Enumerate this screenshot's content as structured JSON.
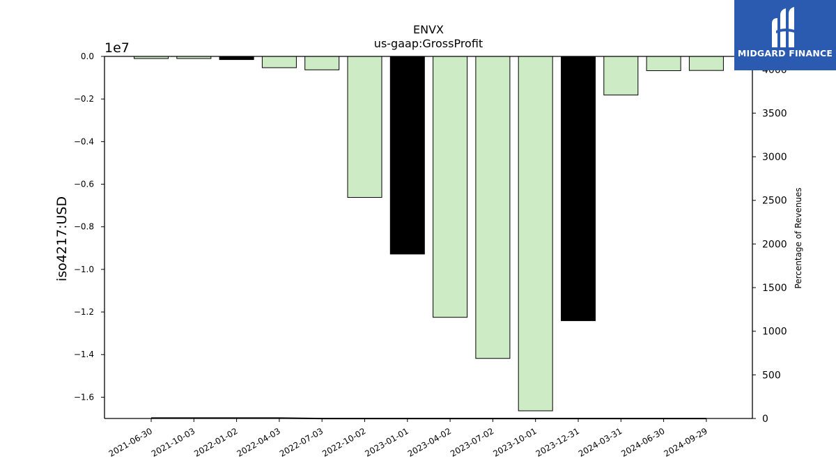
{
  "chart_data": {
    "type": "bar",
    "title": "ENVX",
    "subtitle": "us-gaap:GrossProfit",
    "ylabel": "iso4217:USD",
    "y2label": "Percentage of Revenues",
    "y_offset_label": "1e7",
    "categories": [
      "2021-06-30",
      "2021-10-03",
      "2022-01-02",
      "2022-04-03",
      "2022-07-03",
      "2022-10-02",
      "2023-01-01",
      "2023-04-02",
      "2023-07-02",
      "2023-10-01",
      "2023-12-31",
      "2024-03-31",
      "2024-06-30",
      "2024-09-29"
    ],
    "series": [
      {
        "values": [
          -100000,
          -100000,
          -150000,
          -530000,
          -630000,
          -6620000,
          -9280000,
          -12250000,
          -14180000,
          -16640000,
          -12410000,
          -1810000,
          -670000,
          -660000
        ],
        "highlight": [
          false,
          false,
          true,
          false,
          false,
          false,
          true,
          false,
          false,
          false,
          true,
          false,
          false,
          false
        ]
      }
    ],
    "line_series": {
      "values": [
        5,
        5,
        5,
        5,
        -1,
        -1,
        -1,
        -1,
        -1,
        -1,
        -1,
        -1,
        -1,
        -1
      ]
    },
    "ylim": [
      -17000000,
      0
    ],
    "y_ticks": [
      0.0,
      -0.2,
      -0.4,
      -0.6,
      -0.8,
      -1.0,
      -1.2,
      -1.4,
      -1.6
    ],
    "y_tick_labels": [
      "0.0",
      "−0.2",
      "−0.4",
      "−0.6",
      "−0.8",
      "−1.0",
      "−1.2",
      "−1.4",
      "−1.6"
    ],
    "y2lim": [
      0,
      4150
    ],
    "y2_ticks": [
      0,
      500,
      1000,
      1500,
      2000,
      2500,
      3000,
      3500,
      4000
    ],
    "y2_tick_labels": [
      "0",
      "500",
      "1000",
      "1500",
      "2000",
      "2500",
      "3000",
      "3500",
      "4000"
    ],
    "colors": {
      "bar": "#cdebc5",
      "bar_highlight": "#000000",
      "edge": "#000000",
      "line": "#000000"
    },
    "grid": false,
    "legend": "none"
  },
  "logo": {
    "text": "MIDGARD FINANCE",
    "icon": "midgard-logo-icon"
  }
}
